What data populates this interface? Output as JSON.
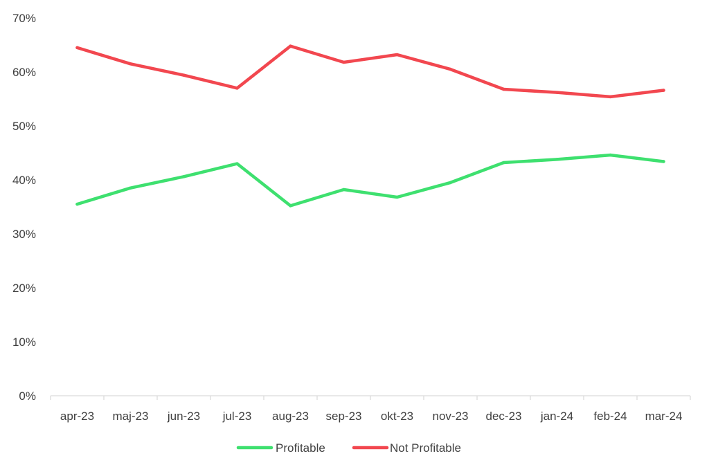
{
  "chart_data": {
    "type": "line",
    "title": "",
    "xlabel": "",
    "ylabel": "",
    "categories": [
      "apr-23",
      "maj-23",
      "jun-23",
      "jul-23",
      "aug-23",
      "sep-23",
      "okt-23",
      "nov-23",
      "dec-23",
      "jan-24",
      "feb-24",
      "mar-24"
    ],
    "ylim": [
      0,
      70
    ],
    "yticks": [
      "0%",
      "10%",
      "20%",
      "30%",
      "40%",
      "50%",
      "60%",
      "70%"
    ],
    "grid": false,
    "legend_position": "bottom",
    "series": [
      {
        "name": "Profitable",
        "color": "#3ee06f",
        "values": [
          35.5,
          38.5,
          40.6,
          43.0,
          35.2,
          38.2,
          36.8,
          39.5,
          43.2,
          43.8,
          44.6,
          43.4
        ]
      },
      {
        "name": "Not Profitable",
        "color": "#f2474f",
        "values": [
          64.5,
          61.5,
          59.4,
          57.0,
          64.8,
          61.8,
          63.2,
          60.5,
          56.8,
          56.2,
          55.4,
          56.6
        ]
      }
    ]
  }
}
